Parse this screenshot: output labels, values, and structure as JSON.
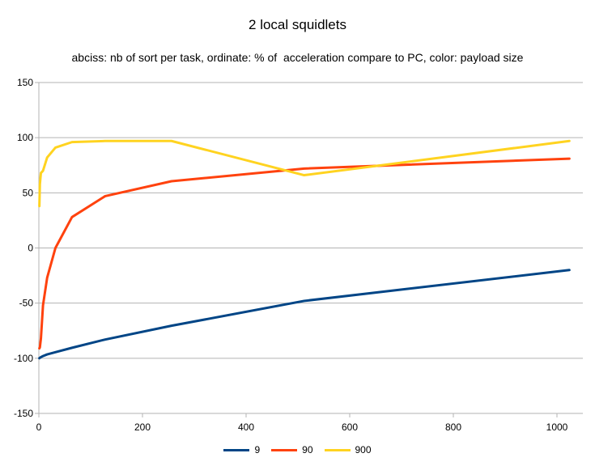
{
  "chart_data": {
    "type": "line",
    "title": "2 local squidlets",
    "subtitle": "abciss: nb of sort per task, ordinate: % of  acceleration compare to PC, color: payload size",
    "xlabel": "",
    "ylabel": "",
    "xlim": [
      0,
      1050
    ],
    "ylim": [
      -150,
      150
    ],
    "xticks": [
      0,
      200,
      400,
      600,
      800,
      1000
    ],
    "yticks": [
      150,
      100,
      50,
      0,
      -50,
      -100,
      -150
    ],
    "grid": "horizontal",
    "legend_position": "bottom",
    "series": [
      {
        "name": "9",
        "color": "#004586",
        "points": [
          [
            1,
            -100
          ],
          [
            2,
            -99.5
          ],
          [
            4,
            -99
          ],
          [
            8,
            -98
          ],
          [
            16,
            -96.5
          ],
          [
            32,
            -94.5
          ],
          [
            64,
            -90.5
          ],
          [
            128,
            -83
          ],
          [
            256,
            -70.5
          ],
          [
            512,
            -48
          ],
          [
            1024,
            -20
          ]
        ]
      },
      {
        "name": "90",
        "color": "#ff420e",
        "points": [
          [
            1,
            -91
          ],
          [
            2,
            -90
          ],
          [
            4,
            -82
          ],
          [
            8,
            -52
          ],
          [
            16,
            -27
          ],
          [
            32,
            0
          ],
          [
            64,
            28
          ],
          [
            128,
            47
          ],
          [
            256,
            60.5
          ],
          [
            512,
            72
          ],
          [
            1024,
            81
          ]
        ]
      },
      {
        "name": "900",
        "color": "#ffd320",
        "points": [
          [
            1,
            38
          ],
          [
            2,
            58
          ],
          [
            4,
            68
          ],
          [
            8,
            70
          ],
          [
            16,
            82
          ],
          [
            32,
            91
          ],
          [
            64,
            96
          ],
          [
            128,
            97
          ],
          [
            256,
            97
          ],
          [
            512,
            66
          ],
          [
            1024,
            97
          ]
        ]
      }
    ]
  }
}
